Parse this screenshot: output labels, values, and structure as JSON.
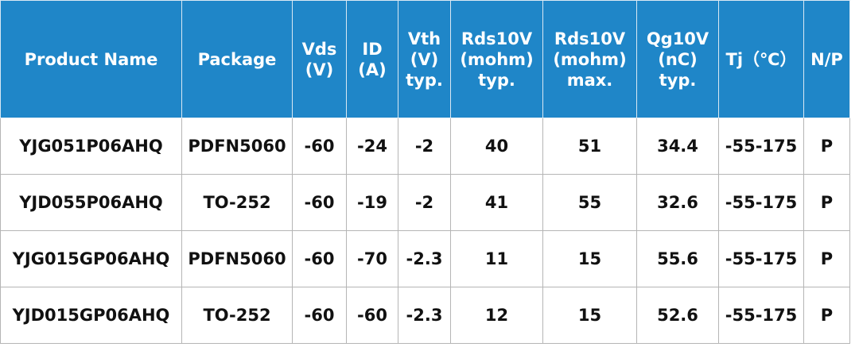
{
  "table": {
    "header": [
      "Product Name",
      "Package",
      "Vds\n(V)",
      "ID\n(A)",
      "Vth\n(V)\ntyp.",
      "Rds10V\n(mohm)\ntyp.",
      "Rds10V\n(mohm)\nmax.",
      "Qg10V\n(nC)\ntyp.",
      "Tj（℃）",
      "N/P"
    ],
    "rows": [
      [
        "YJG051P06AHQ",
        "PDFN5060",
        "-60",
        "-24",
        "-2",
        "40",
        "51",
        "34.4",
        "-55-175",
        "P"
      ],
      [
        "YJD055P06AHQ",
        "TO-252",
        "-60",
        "-19",
        "-2",
        "41",
        "55",
        "32.6",
        "-55-175",
        "P"
      ],
      [
        "YJG015GP06AHQ",
        "PDFN5060",
        "-60",
        "-70",
        "-2.3",
        "11",
        "15",
        "55.6",
        "-55-175",
        "P"
      ],
      [
        "YJD015GP06AHQ",
        "TO-252",
        "-60",
        "-60",
        "-2.3",
        "12",
        "15",
        "52.6",
        "-55-175",
        "P"
      ]
    ]
  }
}
